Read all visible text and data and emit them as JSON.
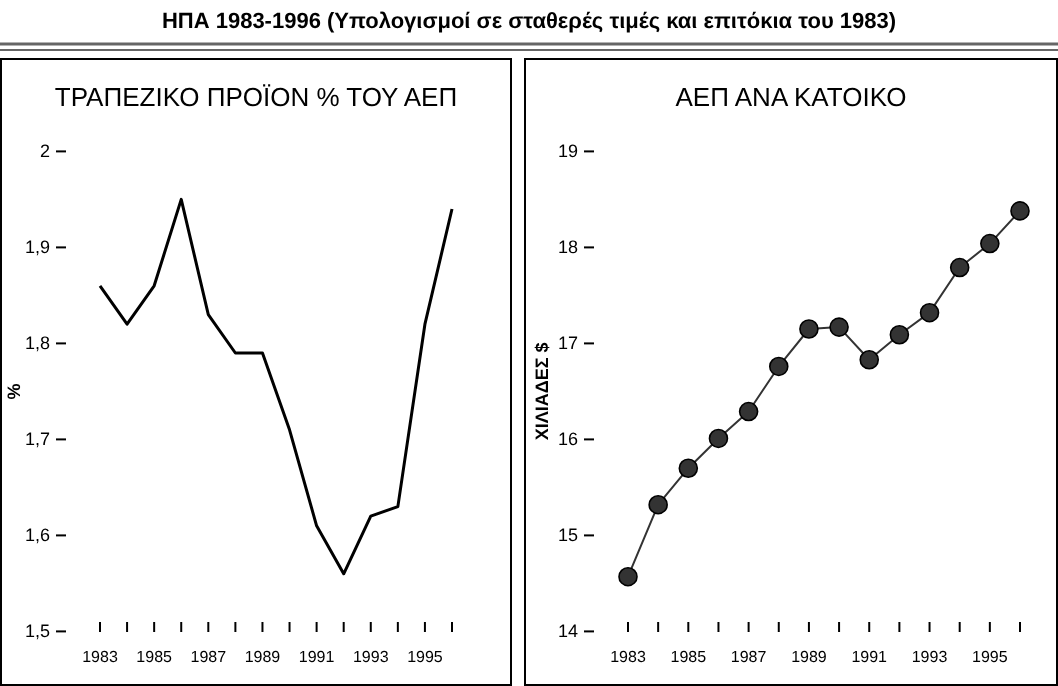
{
  "chart_data": [
    {
      "type": "line",
      "title": "ΤΡΑΠΕΖΙΚΟ ΠΡΟΪΟΝ % ΤΟΥ ΑΕΠ",
      "ylabel": "%",
      "annotations": [
        "ΗΠΑ 1983-1996 (Υπολογισμοί σε σταθερές τιμές και επιτόκια του 1983)"
      ],
      "categories": [
        "1983",
        null,
        "1985",
        null,
        "1987",
        null,
        "1989",
        null,
        "1991",
        null,
        "1993",
        null,
        "1995",
        null
      ],
      "series": [
        {
          "color": "#000000",
          "values": [
            1.86,
            1.82,
            1.86,
            1.95,
            1.83,
            1.79,
            1.79,
            1.71,
            1.61,
            1.56,
            1.62,
            1.63,
            1.82,
            1.94
          ]
        }
      ],
      "ylim": [
        1.5,
        2
      ],
      "yticks": [
        {
          "value": 1.5,
          "label": "1,5"
        },
        {
          "value": 1.6,
          "label": "1,6"
        },
        {
          "value": 1.7,
          "label": "1,7"
        },
        {
          "value": 1.8,
          "label": "1,8"
        },
        {
          "value": 1.9,
          "label": "1,9"
        },
        2
      ]
    },
    {
      "type": "line",
      "title": "ΑΕΠ ΑΝΑ ΚΑΤΟΙΚΟ",
      "ylabel": "ΧΙΛΙΑΔΕΣ $",
      "categories": [
        "1983",
        null,
        "1985",
        null,
        "1987",
        null,
        "1989",
        null,
        "1991",
        null,
        "1993",
        null,
        "1995",
        null
      ],
      "series": [
        {
          "color": "#333333",
          "values": [
            14.57,
            15.32,
            15.7,
            16.01,
            16.29,
            16.76,
            17.15,
            17.17,
            16.83,
            17.09,
            17.32,
            17.79,
            18.04,
            18.38
          ]
        }
      ],
      "ylim": [
        14,
        19
      ],
      "yticks": [
        14,
        15,
        16,
        17,
        18,
        19
      ],
      "marker": "circle"
    }
  ]
}
